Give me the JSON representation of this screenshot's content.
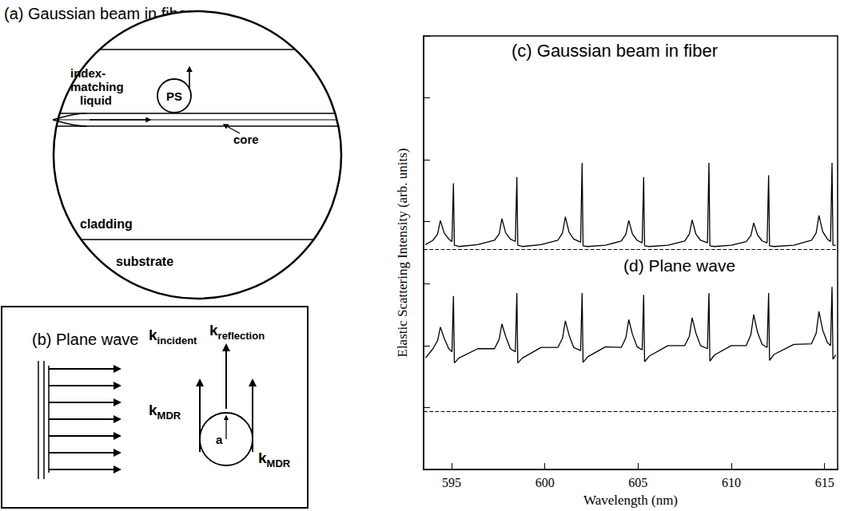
{
  "chart_data": {
    "type": "line",
    "x_label": "Wavelength (nm)",
    "y_label": "Elastic Scattering Intensity (arb. units)",
    "xlim": [
      593.5,
      615.7
    ],
    "xticks": [
      595,
      600,
      605,
      610,
      615
    ],
    "ylim": [
      0,
      7
    ],
    "yticks": [
      0,
      1,
      2,
      3,
      4,
      5,
      6,
      7
    ],
    "tick_labels": "x",
    "grid": false,
    "baselines": [
      3.56,
      0.94
    ],
    "x": [
      593.6,
      594.0,
      594.25,
      594.4,
      594.6,
      594.85,
      595.02,
      595.1,
      595.15,
      595.4,
      596.4,
      597.3,
      597.55,
      597.7,
      597.9,
      598.15,
      598.42,
      598.5,
      598.55,
      598.8,
      599.8,
      600.7,
      600.95,
      601.1,
      601.3,
      601.55,
      601.92,
      602.0,
      602.05,
      602.3,
      603.25,
      604.1,
      604.35,
      604.5,
      604.7,
      604.95,
      605.22,
      605.3,
      605.35,
      605.6,
      606.6,
      607.5,
      607.75,
      607.9,
      608.1,
      608.35,
      608.72,
      608.8,
      608.85,
      609.1,
      610.0,
      610.8,
      611.05,
      611.2,
      611.4,
      611.65,
      611.92,
      612.0,
      612.05,
      612.3,
      613.35,
      614.3,
      614.55,
      614.7,
      614.9,
      615.15,
      615.32,
      615.4,
      615.45,
      615.6
    ],
    "series": [
      {
        "name": "(c) Gaussian beam in fiber",
        "color": "#000000",
        "values": [
          3.63,
          3.7,
          3.8,
          4.02,
          3.82,
          3.72,
          3.68,
          4.62,
          3.62,
          3.6,
          3.63,
          3.7,
          3.8,
          4.05,
          3.82,
          3.72,
          3.68,
          4.72,
          3.62,
          3.6,
          3.63,
          3.7,
          3.82,
          4.08,
          3.83,
          3.72,
          3.67,
          4.95,
          3.61,
          3.6,
          3.62,
          3.69,
          3.8,
          4.02,
          3.8,
          3.7,
          3.66,
          4.72,
          3.61,
          3.6,
          3.62,
          3.69,
          3.8,
          4.03,
          3.8,
          3.7,
          3.66,
          4.95,
          3.61,
          3.6,
          3.62,
          3.68,
          3.78,
          3.98,
          3.79,
          3.69,
          3.66,
          4.75,
          3.61,
          3.6,
          3.62,
          3.7,
          3.82,
          4.1,
          3.84,
          3.72,
          3.68,
          4.95,
          3.62,
          3.62
        ]
      },
      {
        "name": "(d) Plane wave",
        "color": "#000000",
        "values": [
          1.8,
          1.95,
          2.08,
          2.3,
          2.12,
          1.95,
          1.9,
          2.8,
          1.72,
          1.8,
          1.95,
          1.95,
          2.1,
          2.35,
          2.15,
          1.95,
          1.9,
          2.85,
          1.72,
          1.8,
          1.97,
          1.97,
          2.12,
          2.4,
          2.17,
          1.97,
          1.92,
          2.85,
          1.73,
          1.82,
          1.98,
          1.97,
          2.13,
          2.42,
          2.18,
          1.98,
          1.93,
          2.82,
          1.74,
          1.83,
          2.0,
          2.0,
          2.15,
          2.45,
          2.2,
          2.0,
          1.95,
          2.85,
          1.75,
          1.85,
          2.0,
          2.0,
          2.18,
          2.5,
          2.22,
          2.02,
          1.97,
          2.85,
          1.76,
          1.86,
          2.02,
          2.03,
          2.2,
          2.55,
          2.25,
          2.05,
          2.0,
          2.95,
          1.78,
          1.85
        ]
      }
    ]
  },
  "panel_a": {
    "title": "(a) Gaussian beam in fiber",
    "labels": {
      "liquid": "index-matching liquid",
      "particle": "PS",
      "core": "core",
      "cladding": "cladding",
      "substrate": "substrate"
    }
  },
  "panel_b": {
    "title": "(b) Plane wave",
    "incident": {
      "symbol": "k",
      "subscript": "incident"
    },
    "reflection": {
      "symbol": "k",
      "subscript": "reflection"
    },
    "mdr": {
      "symbol": "k",
      "subscript": "MDR"
    },
    "radius": "a"
  }
}
